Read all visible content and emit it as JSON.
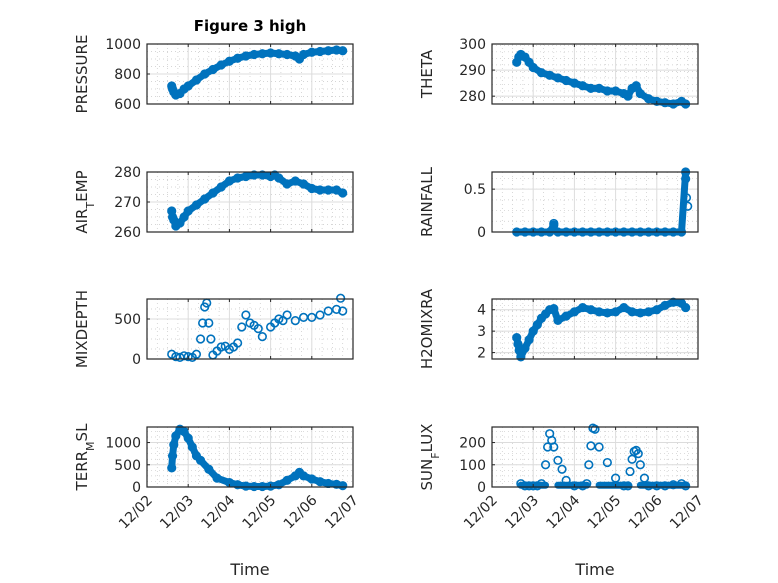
{
  "figure": {
    "title": "Figure 3 high",
    "marker_color": "#0072BD",
    "x_tick_labels": [
      "12/02",
      "12/03",
      "12/04",
      "12/05",
      "12/06",
      "12/07"
    ],
    "xlabel": "Time"
  },
  "chart_data": [
    {
      "type": "scatter",
      "name": "pressure",
      "ylabel": "PRESSURE",
      "ylabel_sub": "",
      "ylim": [
        600,
        1000
      ],
      "yticks": [
        600,
        800,
        1000
      ],
      "xlim": [
        0,
        5
      ],
      "x": [
        0.6,
        0.62,
        0.65,
        0.7,
        0.8,
        0.9,
        1.0,
        1.2,
        1.4,
        1.6,
        1.8,
        2.0,
        2.2,
        2.4,
        2.6,
        2.8,
        3.0,
        3.2,
        3.4,
        3.6,
        3.7,
        3.8,
        4.0,
        4.2,
        4.4,
        4.6,
        4.75
      ],
      "y": [
        720,
        700,
        680,
        660,
        670,
        700,
        720,
        760,
        800,
        830,
        860,
        885,
        905,
        920,
        930,
        935,
        940,
        935,
        930,
        920,
        900,
        930,
        945,
        950,
        955,
        960,
        955
      ]
    },
    {
      "type": "scatter",
      "name": "theta",
      "ylabel": "THETA",
      "ylabel_sub": "",
      "ylim": [
        277,
        300
      ],
      "yticks": [
        280,
        290,
        300
      ],
      "xlim": [
        0,
        5
      ],
      "x": [
        0.6,
        0.65,
        0.7,
        0.8,
        0.9,
        1.0,
        1.2,
        1.4,
        1.6,
        1.8,
        2.0,
        2.2,
        2.4,
        2.6,
        2.8,
        3.0,
        3.2,
        3.3,
        3.4,
        3.5,
        3.6,
        3.8,
        4.0,
        4.2,
        4.4,
        4.6,
        4.7
      ],
      "y": [
        293,
        295,
        296,
        295,
        293,
        291,
        289,
        288,
        287,
        286,
        285,
        284,
        283,
        283,
        282,
        282,
        281,
        280,
        283,
        284,
        281,
        279,
        278,
        277.5,
        277,
        278,
        277
      ]
    },
    {
      "type": "scatter",
      "name": "air_temp",
      "ylabel": "AIR",
      "ylabel_sub": "T",
      "ylabel_tail": "EMP",
      "ylim": [
        260,
        280
      ],
      "yticks": [
        260,
        270,
        280
      ],
      "xlim": [
        0,
        5
      ],
      "x": [
        0.6,
        0.62,
        0.65,
        0.7,
        0.8,
        0.9,
        1.0,
        1.2,
        1.4,
        1.6,
        1.8,
        2.0,
        2.2,
        2.4,
        2.6,
        2.8,
        3.0,
        3.1,
        3.2,
        3.4,
        3.6,
        3.8,
        4.0,
        4.2,
        4.4,
        4.6,
        4.75
      ],
      "y": [
        267,
        265,
        264,
        262,
        263,
        265,
        267,
        269,
        271,
        273,
        275,
        277,
        278,
        278.5,
        279,
        279,
        278.5,
        279,
        278,
        276,
        277,
        276,
        274.5,
        274,
        274,
        274,
        273
      ]
    },
    {
      "type": "scatter",
      "name": "rainfall",
      "ylabel": "RAINFALL",
      "ylabel_sub": "",
      "ylim": [
        0,
        0.7
      ],
      "yticks": [
        0,
        0.5
      ],
      "xlim": [
        0,
        5
      ],
      "x": [
        0.6,
        0.8,
        1.0,
        1.2,
        1.4,
        1.5,
        1.5,
        1.6,
        1.8,
        2.0,
        2.2,
        2.4,
        2.6,
        2.8,
        3.0,
        3.2,
        3.4,
        3.6,
        3.8,
        4.0,
        4.2,
        4.4,
        4.6,
        4.7,
        4.7,
        4.72,
        4.75
      ],
      "y": [
        0,
        0,
        0,
        0,
        0,
        0.08,
        0.1,
        0,
        0,
        0,
        0,
        0,
        0,
        0,
        0,
        0,
        0,
        0,
        0,
        0,
        0,
        0,
        0,
        0.7,
        0.62,
        0.4,
        0.3
      ]
    },
    {
      "type": "scatter",
      "name": "mixdepth",
      "ylabel": "MIXDEPTH",
      "ylabel_sub": "",
      "ylim": [
        0,
        750
      ],
      "yticks": [
        0,
        500
      ],
      "xlim": [
        0,
        5
      ],
      "x": [
        0.6,
        0.7,
        0.8,
        0.9,
        1.0,
        1.1,
        1.2,
        1.3,
        1.35,
        1.4,
        1.45,
        1.5,
        1.55,
        1.6,
        1.7,
        1.8,
        1.9,
        2.0,
        2.1,
        2.2,
        2.3,
        2.4,
        2.5,
        2.6,
        2.7,
        2.8,
        3.0,
        3.1,
        3.2,
        3.3,
        3.4,
        3.6,
        3.8,
        4.0,
        4.2,
        4.4,
        4.6,
        4.7,
        4.75
      ],
      "y": [
        60,
        30,
        20,
        40,
        30,
        20,
        60,
        250,
        450,
        650,
        700,
        450,
        250,
        50,
        100,
        150,
        160,
        120,
        150,
        200,
        400,
        550,
        450,
        420,
        380,
        280,
        400,
        450,
        500,
        480,
        550,
        480,
        520,
        520,
        550,
        600,
        620,
        760,
        600
      ]
    },
    {
      "type": "scatter",
      "name": "h2omixra",
      "ylabel": "H2OMIXRA",
      "ylabel_sub": "",
      "ylim": [
        1.7,
        4.5
      ],
      "yticks": [
        2,
        3,
        4
      ],
      "xlim": [
        0,
        5
      ],
      "x": [
        0.6,
        0.63,
        0.66,
        0.7,
        0.8,
        0.9,
        1.0,
        1.1,
        1.2,
        1.3,
        1.4,
        1.5,
        1.6,
        1.8,
        2.0,
        2.2,
        2.4,
        2.6,
        2.8,
        3.0,
        3.2,
        3.4,
        3.6,
        3.8,
        4.0,
        4.2,
        4.4,
        4.6,
        4.7
      ],
      "y": [
        2.7,
        2.4,
        2.1,
        1.8,
        2.2,
        2.6,
        3.0,
        3.3,
        3.6,
        3.8,
        4.0,
        4.05,
        3.5,
        3.7,
        3.9,
        4.1,
        4.0,
        3.9,
        3.85,
        3.9,
        4.1,
        3.9,
        3.85,
        3.9,
        4.0,
        4.2,
        4.35,
        4.3,
        4.1
      ]
    },
    {
      "type": "scatter",
      "name": "terr_msl",
      "ylabel": "TERR",
      "ylabel_sub": "M",
      "ylabel_tail": "SL",
      "ylim": [
        0,
        1350
      ],
      "yticks": [
        0,
        500,
        1000
      ],
      "xlim": [
        0,
        5
      ],
      "x": [
        0.6,
        0.62,
        0.65,
        0.7,
        0.8,
        0.9,
        1.0,
        1.1,
        1.2,
        1.3,
        1.5,
        1.7,
        2.0,
        2.2,
        2.4,
        2.6,
        2.8,
        3.0,
        3.2,
        3.4,
        3.6,
        3.7,
        3.8,
        4.0,
        4.2,
        4.4,
        4.6,
        4.75
      ],
      "y": [
        430,
        700,
        950,
        1150,
        1300,
        1250,
        1100,
        900,
        700,
        600,
        400,
        200,
        100,
        50,
        20,
        10,
        10,
        20,
        50,
        150,
        250,
        330,
        250,
        180,
        120,
        80,
        60,
        30
      ]
    },
    {
      "type": "scatter",
      "name": "sun_flux",
      "ylabel": "SUN",
      "ylabel_sub": "F",
      "ylabel_tail": "LUX",
      "ylim": [
        0,
        270
      ],
      "yticks": [
        0,
        100,
        200
      ],
      "xlim": [
        0,
        5
      ],
      "x": [
        0.7,
        0.8,
        0.9,
        1.0,
        1.1,
        1.2,
        1.3,
        1.35,
        1.4,
        1.45,
        1.5,
        1.6,
        1.7,
        1.8,
        2.0,
        2.2,
        2.3,
        2.35,
        2.4,
        2.45,
        2.5,
        2.6,
        2.8,
        3.0,
        3.2,
        3.3,
        3.35,
        3.4,
        3.45,
        3.5,
        3.55,
        3.6,
        3.7,
        3.8,
        4.0,
        4.2,
        4.4,
        4.6,
        4.7
      ],
      "y": [
        15,
        5,
        5,
        5,
        5,
        15,
        100,
        180,
        240,
        210,
        180,
        120,
        80,
        30,
        5,
        5,
        15,
        100,
        185,
        265,
        260,
        180,
        110,
        40,
        5,
        5,
        70,
        125,
        160,
        165,
        150,
        100,
        40,
        5,
        5,
        5,
        10,
        15,
        5
      ]
    }
  ]
}
